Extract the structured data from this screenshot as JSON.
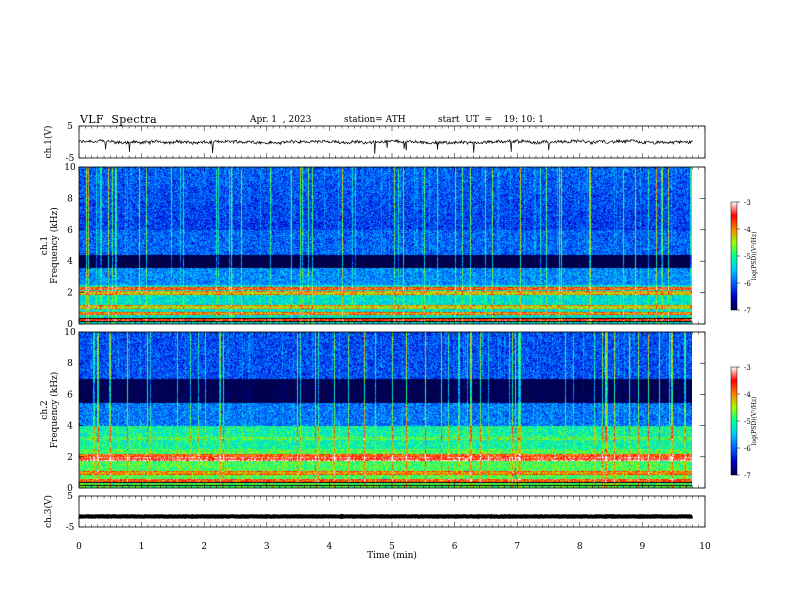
{
  "header": {
    "title": "VLF  Spectra",
    "date": "Apr. 1  , 2023",
    "station": "station= ATH",
    "start_ut": "start  UT  =    19: 10: 1"
  },
  "chart_data": {
    "type": "heatmap",
    "x": {
      "label": "Time  (min)",
      "ticks": [
        "0",
        "1",
        "2",
        "3",
        "4",
        "5",
        "6",
        "7",
        "8",
        "9",
        "10"
      ],
      "range": [
        0,
        10
      ],
      "data_extent": [
        0,
        9.8
      ]
    },
    "panels": [
      {
        "id": "ch1-voltage",
        "type": "line",
        "ylabel": "ch.1(V)",
        "yticks": [
          "5",
          "-5"
        ],
        "ylim": [
          -5,
          5
        ],
        "baseline": 0,
        "color": "#000000"
      },
      {
        "id": "ch1-spectrogram",
        "type": "heatmap",
        "ylabel": "ch.1\nFrequency (kHz)",
        "yticks": [
          "0",
          "2",
          "4",
          "6",
          "8",
          "10"
        ],
        "ylim": [
          0,
          10
        ],
        "colorbar": {
          "label": "log(PSD)(V²/Hz)",
          "ticks": [
            "-3",
            "-4",
            "-5",
            "-6",
            "-7"
          ],
          "range": [
            -7,
            -3
          ]
        },
        "bands_khz": [
          {
            "f": 0.3,
            "level": -3.8
          },
          {
            "f": 0.7,
            "level": -4.2
          },
          {
            "f": 1.1,
            "level": -4.6
          },
          {
            "f": 2.0,
            "level": -4.5
          },
          {
            "f": 2.3,
            "level": -4.0
          }
        ],
        "quiet_band_khz": [
          3.6,
          4.4
        ]
      },
      {
        "id": "ch2-spectrogram",
        "type": "heatmap",
        "ylabel": "ch.2\nFrequency (kHz)",
        "yticks": [
          "0",
          "2",
          "4",
          "6",
          "8",
          "10"
        ],
        "ylim": [
          0,
          10
        ],
        "colorbar": {
          "label": "log(PSD)(V²/Hz)",
          "ticks": [
            "-3",
            "-4",
            "-5",
            "-6",
            "-7"
          ],
          "range": [
            -7,
            -3
          ]
        },
        "bands_khz": [
          {
            "f": 0.5,
            "level": -4.0
          },
          {
            "f": 1.0,
            "level": -4.3
          },
          {
            "f": 1.9,
            "level": -3.7
          },
          {
            "f": 2.1,
            "level": -4.0
          },
          {
            "f": 3.2,
            "level": -5.0
          }
        ],
        "quiet_band_khz": [
          5.5,
          7.0
        ]
      },
      {
        "id": "ch3-voltage",
        "type": "line",
        "ylabel": "ch.3(V)",
        "yticks": [
          "5",
          "-5"
        ],
        "ylim": [
          -5,
          5
        ],
        "baseline": -1.6,
        "color": "#000000"
      }
    ]
  },
  "colors": {
    "colorbar_stops": [
      "#00004a",
      "#0000cc",
      "#0060ff",
      "#00c8ff",
      "#00ff90",
      "#a0ff00",
      "#ff8000",
      "#ff0000",
      "#ffffff"
    ],
    "axis": "#000000"
  }
}
